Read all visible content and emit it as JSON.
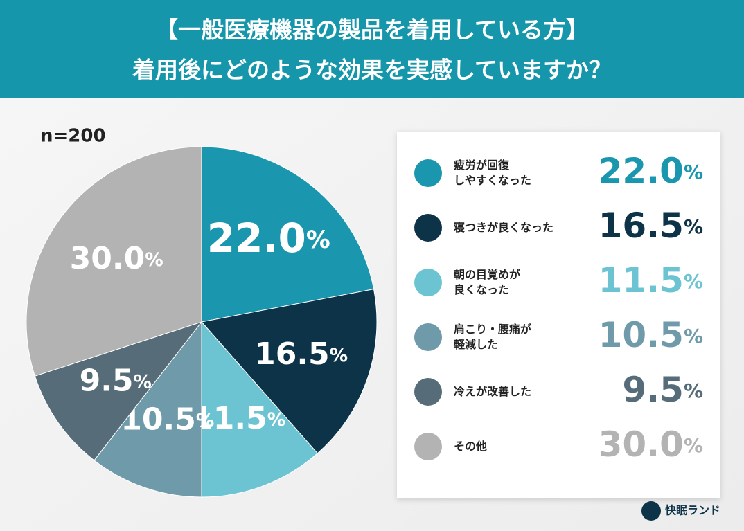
{
  "chart_data": {
    "type": "pie",
    "title": [
      "【一般医療機器の製品を着用している方】",
      "着用後にどのような効果を実感していますか？"
    ],
    "sample": "n=200",
    "brand": "快眠ランド",
    "categories": [
      "疲労が回復\nしやすくなった",
      "寝つきが良くなった",
      "朝の目覚めが\n良くなった",
      "肩こり・腰痛が\n軽減した",
      "冷えが改善した",
      "その他"
    ],
    "values": [
      22.0,
      16.5,
      11.5,
      10.5,
      9.5,
      30.0
    ],
    "value_labels": [
      "22.0%",
      "16.5%",
      "11.5%",
      "10.5%",
      "9.5%",
      "30.0%"
    ],
    "colors": [
      "#1a97ae",
      "#0d3349",
      "#6cc4d3",
      "#6f9aaa",
      "#566d79",
      "#b3b3b3"
    ]
  }
}
